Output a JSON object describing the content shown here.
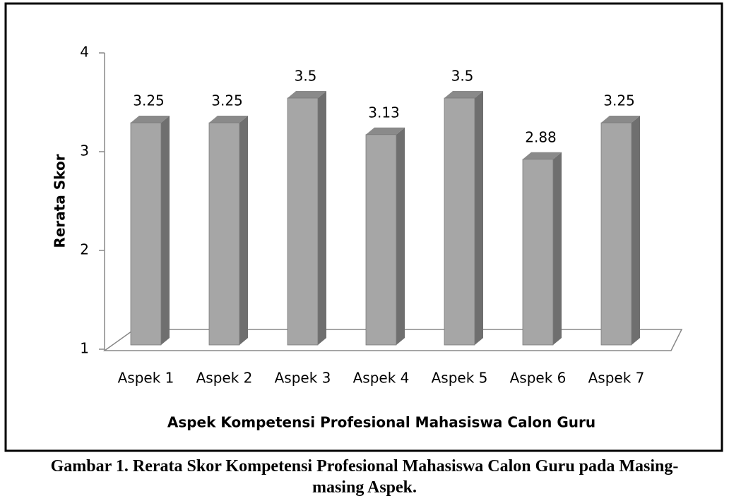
{
  "chart_data": {
    "type": "bar",
    "categories": [
      "Aspek 1",
      "Aspek 2",
      "Aspek 3",
      "Aspek 4",
      "Aspek 5",
      "Aspek 6",
      "Aspek 7"
    ],
    "values": [
      3.25,
      3.25,
      3.5,
      3.13,
      3.5,
      2.88,
      3.25
    ],
    "color": "#a6a6a6",
    "x_label": "Aspek Kompetensi Profesional Mahasiswa Calon Guru",
    "y_label": "Rerata Skor",
    "ylim": [
      1,
      4
    ],
    "yticks": [
      1,
      2,
      3,
      4
    ],
    "grid": false
  },
  "caption": [
    "Gambar 1. Rerata Skor Kompetensi Profesional Mahasiswa Calon Guru pada Masing-",
    "masing Aspek."
  ]
}
